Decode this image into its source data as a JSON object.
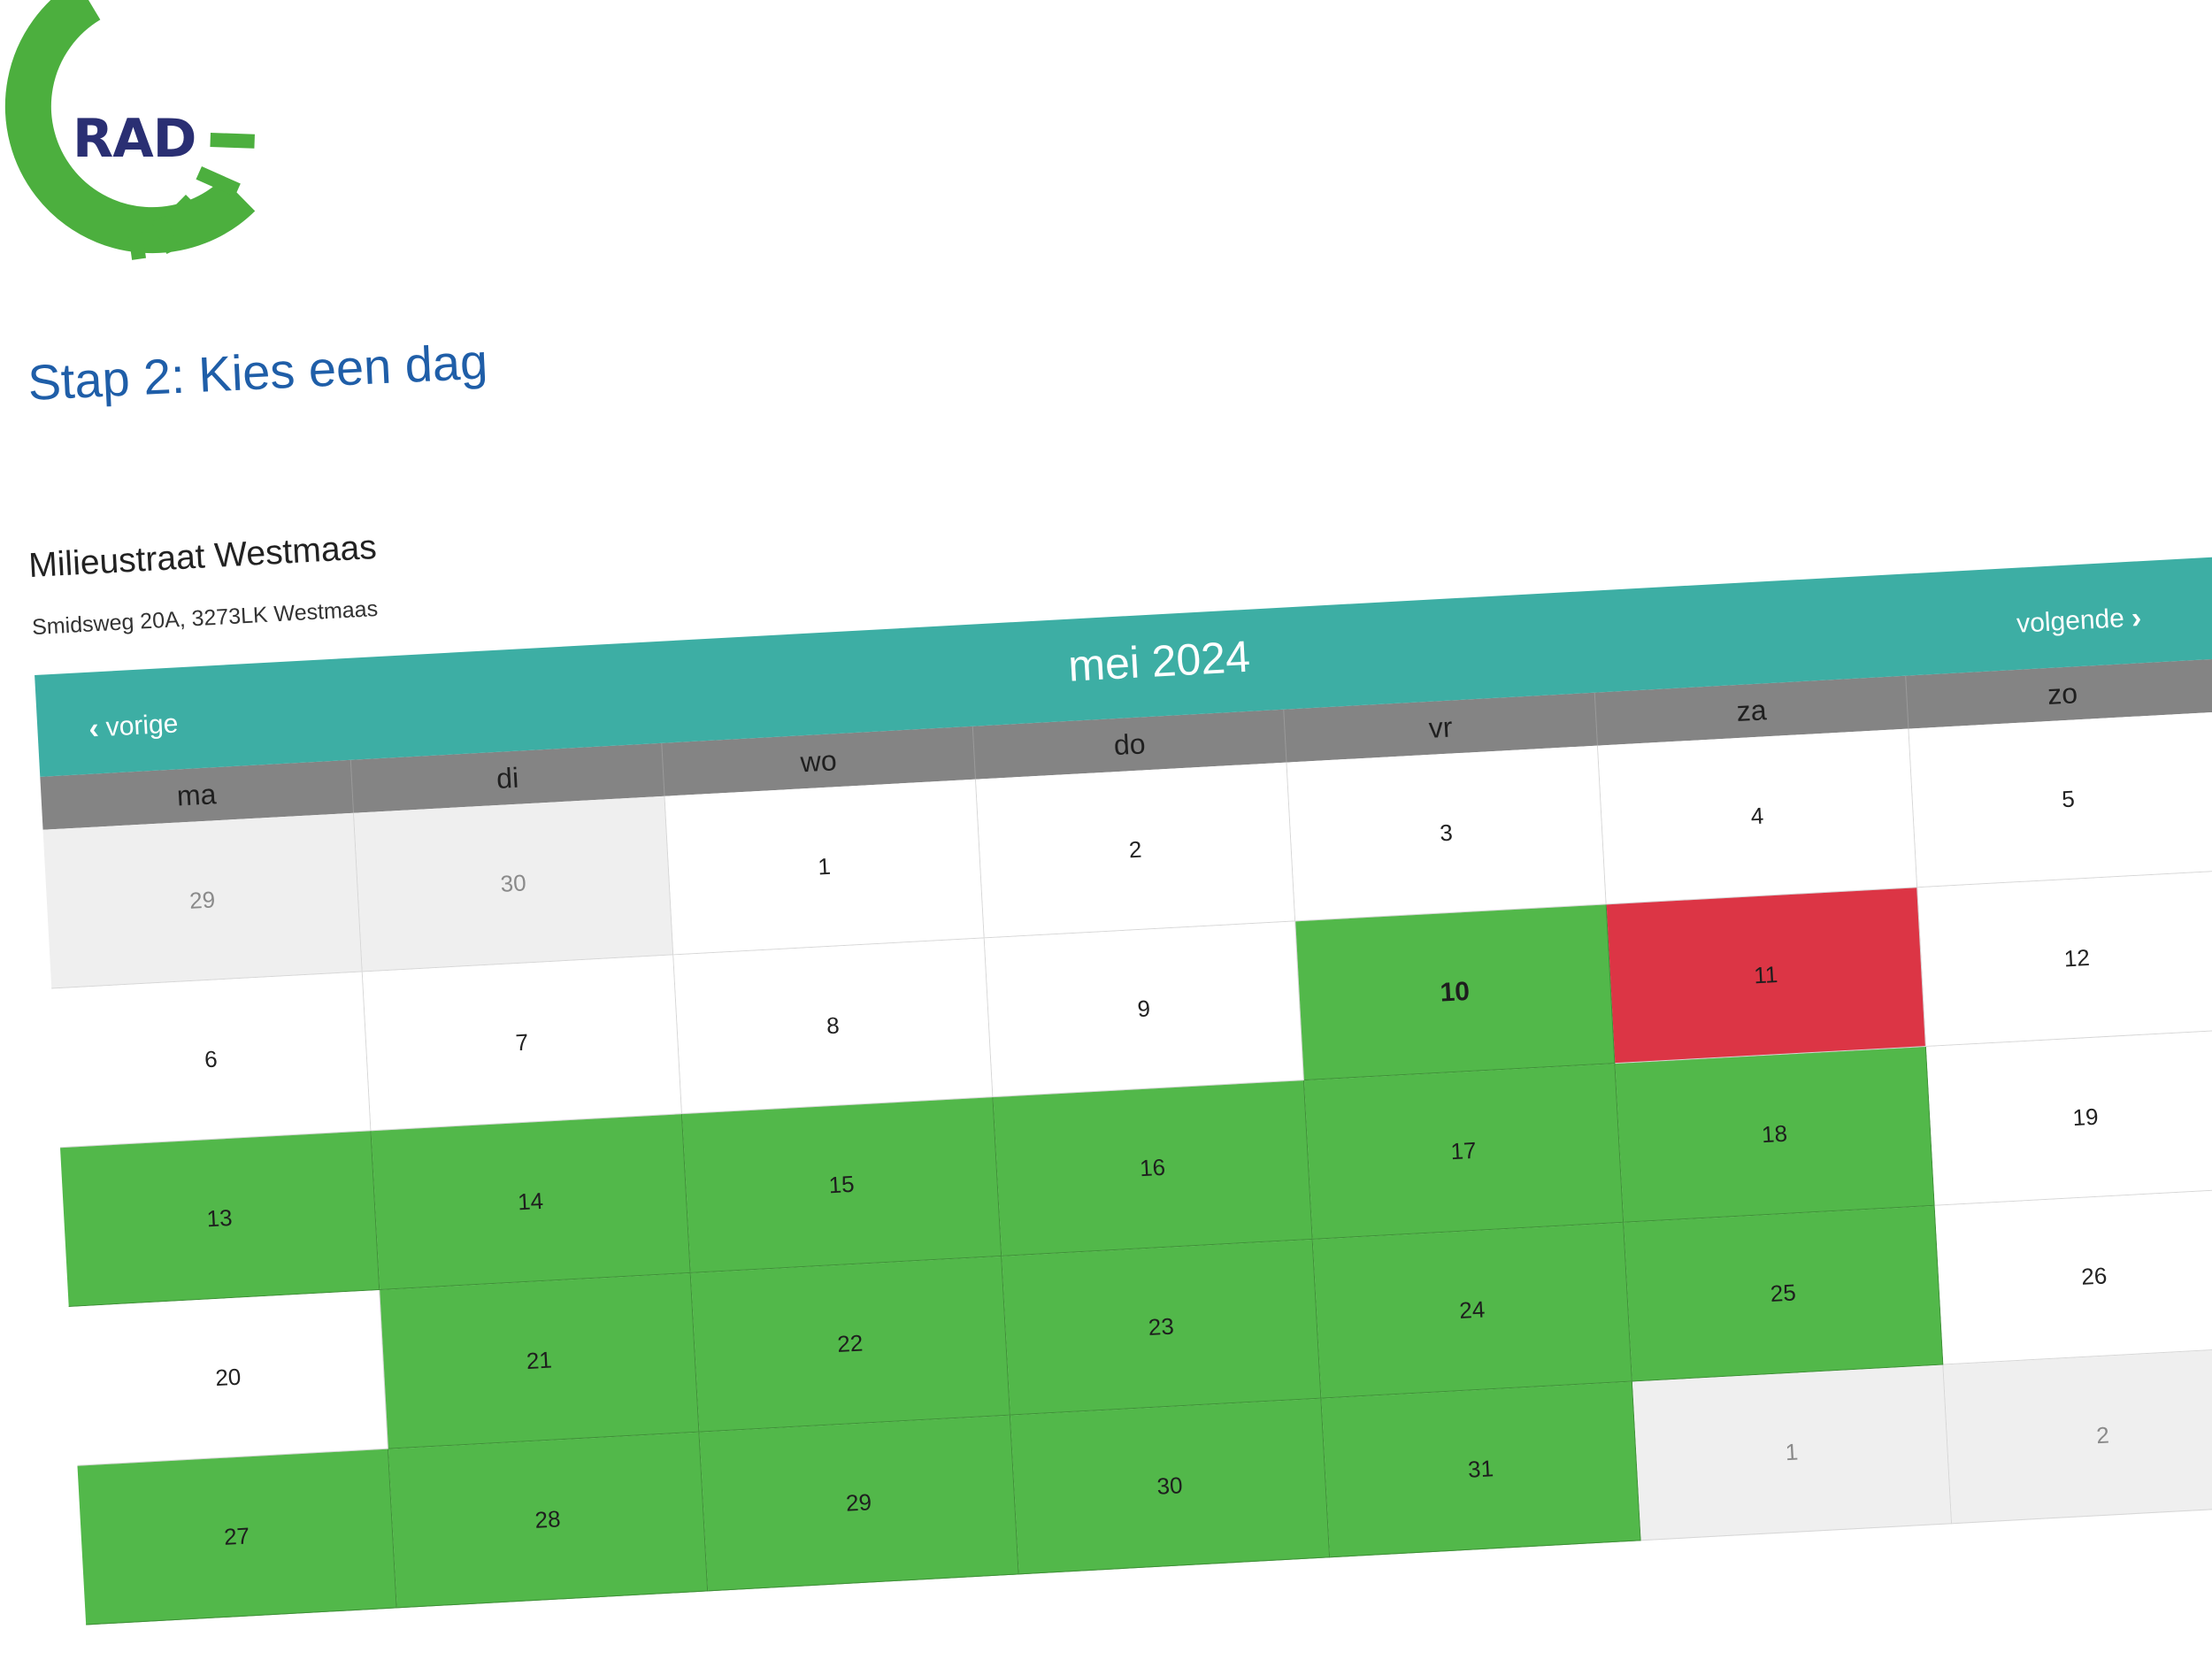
{
  "logo": {
    "text": "RAD",
    "green": "#4caf3e",
    "navy": "#2a2f73"
  },
  "page": {
    "step_title": "Stap 2: Kies een dag"
  },
  "location": {
    "name": "Milieustraat Westmaas",
    "address": "Smidsweg 20A, 3273LK Westmaas"
  },
  "calendar": {
    "prev_label": "vorige",
    "next_label": "volgende",
    "prev_icon": "chevron-left-icon",
    "next_icon": "chevron-right-icon",
    "month_title": "mei 2024",
    "weekdays": [
      "ma",
      "di",
      "wo",
      "do",
      "vr",
      "za",
      "zo"
    ],
    "colors": {
      "header": "#3daea4",
      "weekday_bar": "#848484",
      "available": "#52b84a",
      "closed": "#dc3545",
      "other_month": "#efefef"
    },
    "days": [
      {
        "label": "29",
        "state": "out"
      },
      {
        "label": "30",
        "state": "out"
      },
      {
        "label": "1",
        "state": "normal"
      },
      {
        "label": "2",
        "state": "normal"
      },
      {
        "label": "3",
        "state": "normal"
      },
      {
        "label": "4",
        "state": "normal"
      },
      {
        "label": "5",
        "state": "normal"
      },
      {
        "label": "6",
        "state": "normal"
      },
      {
        "label": "7",
        "state": "normal"
      },
      {
        "label": "8",
        "state": "normal"
      },
      {
        "label": "9",
        "state": "normal"
      },
      {
        "label": "10",
        "state": "avail",
        "today": true
      },
      {
        "label": "11",
        "state": "closed"
      },
      {
        "label": "12",
        "state": "normal"
      },
      {
        "label": "13",
        "state": "avail"
      },
      {
        "label": "14",
        "state": "avail"
      },
      {
        "label": "15",
        "state": "avail"
      },
      {
        "label": "16",
        "state": "avail"
      },
      {
        "label": "17",
        "state": "avail"
      },
      {
        "label": "18",
        "state": "avail"
      },
      {
        "label": "19",
        "state": "normal"
      },
      {
        "label": "20",
        "state": "normal"
      },
      {
        "label": "21",
        "state": "avail"
      },
      {
        "label": "22",
        "state": "avail"
      },
      {
        "label": "23",
        "state": "avail"
      },
      {
        "label": "24",
        "state": "avail"
      },
      {
        "label": "25",
        "state": "avail"
      },
      {
        "label": "26",
        "state": "normal"
      },
      {
        "label": "27",
        "state": "avail"
      },
      {
        "label": "28",
        "state": "avail"
      },
      {
        "label": "29",
        "state": "avail"
      },
      {
        "label": "30",
        "state": "avail"
      },
      {
        "label": "31",
        "state": "avail"
      },
      {
        "label": "1",
        "state": "out"
      },
      {
        "label": "2",
        "state": "out"
      }
    ]
  }
}
